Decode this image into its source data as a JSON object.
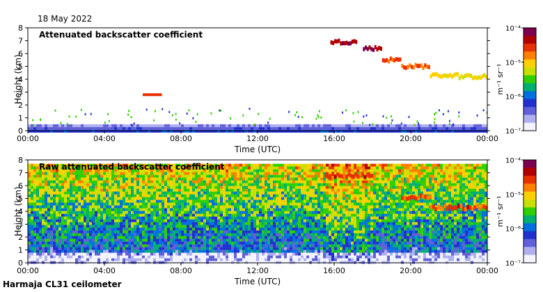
{
  "date": "18 May 2022",
  "footer": "Harmaja CL31 ceilometer",
  "panels": [
    {
      "title": "Attenuated backscatter coefficient",
      "ylabel": "Height (km)",
      "xlabel": "Time (UTC)"
    },
    {
      "title": "Raw attenuated backscatter coefficient",
      "ylabel": "Height (km)",
      "xlabel": "Time (UTC)"
    }
  ],
  "colorbar": {
    "unit_text": "m⁻¹ sr⁻¹",
    "ticks": [
      "10⁻⁴",
      "10⁻⁵",
      "10⁻⁶",
      "10⁻⁷"
    ],
    "colors": [
      "#7b0050",
      "#b00000",
      "#e83000",
      "#ff8000",
      "#ffd000",
      "#c8e000",
      "#30d000",
      "#00b070",
      "#0070e0",
      "#2030d0",
      "#6060d8",
      "#b0b0f0",
      "#f4f4ff"
    ]
  },
  "chart_data": [
    {
      "type": "heatmap",
      "title": "Attenuated backscatter coefficient",
      "xlabel": "Time (UTC)",
      "ylabel": "Height (km)",
      "x_ticks": [
        "00:00",
        "04:00",
        "08:00",
        "12:00",
        "16:00",
        "20:00",
        "00:00"
      ],
      "y_ticks": [
        "0",
        "1",
        "2",
        "3",
        "4",
        "5",
        "6",
        "7",
        "8"
      ],
      "xlim_hours": [
        0,
        24
      ],
      "ylim_km": [
        0,
        8
      ],
      "colorscale": "log",
      "clim": [
        "1e-7",
        "1e-4"
      ],
      "features": {
        "surface_layer": {
          "top_km": 0.5
        },
        "cloud_layers": [
          {
            "start_h": 15.8,
            "end_h": 17.2,
            "height_km": 6.9
          },
          {
            "start_h": 17.5,
            "end_h": 18.5,
            "height_km": 6.4
          },
          {
            "start_h": 18.5,
            "end_h": 19.5,
            "height_km": 5.5
          },
          {
            "start_h": 19.5,
            "end_h": 21.0,
            "height_km": 5.0
          },
          {
            "start_h": 21.0,
            "end_h": 22.5,
            "height_km": 4.3
          },
          {
            "start_h": 22.5,
            "end_h": 24.0,
            "height_km": 4.2
          }
        ],
        "small_patch": {
          "start_h": 6.0,
          "end_h": 7.0,
          "height_km": 2.8
        }
      }
    },
    {
      "type": "heatmap",
      "title": "Raw attenuated backscatter coefficient",
      "xlabel": "Time (UTC)",
      "ylabel": "Height (km)",
      "x_ticks": [
        "00:00",
        "04:00",
        "08:00",
        "12:00",
        "16:00",
        "20:00",
        "00:00"
      ],
      "y_ticks": [
        "0",
        "1",
        "2",
        "3",
        "4",
        "5",
        "6",
        "7",
        "8"
      ],
      "xlim_hours": [
        0,
        24
      ],
      "ylim_km": [
        0,
        8
      ],
      "colorscale": "log",
      "clim": [
        "1e-7",
        "1e-4"
      ],
      "features": {
        "noise_top_km": 7.7,
        "cloud_layers": [
          {
            "start_h": 15.5,
            "end_h": 18.0,
            "height_km": 6.8
          },
          {
            "start_h": 19.5,
            "end_h": 21.0,
            "height_km": 5.1
          },
          {
            "start_h": 21.0,
            "end_h": 24.0,
            "height_km": 4.3
          }
        ]
      }
    }
  ]
}
